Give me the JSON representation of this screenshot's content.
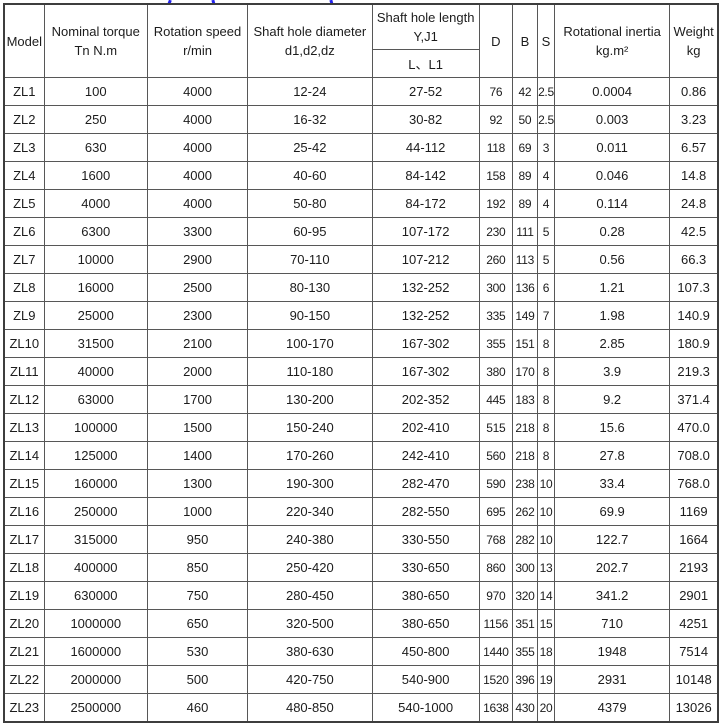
{
  "colors": {
    "table_border": "#575757",
    "outer_border": "#3d3d3d",
    "text": "#1c1c1c",
    "clipped_fragment_blue": "#2222ee",
    "background": "#ffffff"
  },
  "table": {
    "column_ids": [
      "model",
      "nominal_torque",
      "rotation_speed",
      "shaft_hole_diameter",
      "shaft_hole_length",
      "d",
      "b",
      "s",
      "rotational_inertia",
      "weight"
    ],
    "header": {
      "model": "Model",
      "nominal_torque": [
        "Nominal torque",
        "Tn N.m"
      ],
      "rotation_speed": [
        "Rotation speed",
        "r/min"
      ],
      "shaft_hole_diameter": [
        "Shaft hole diameter",
        "d1,d2,dz"
      ],
      "shaft_hole_length_top": [
        "Shaft hole length",
        "Y,J1"
      ],
      "shaft_hole_length_bottom": "L、L1",
      "d": "D",
      "b": "B",
      "s": "S",
      "rotational_inertia": [
        "Rotational inertia",
        "kg.m²"
      ],
      "weight": [
        "Weight",
        "kg"
      ]
    },
    "rows": [
      [
        "ZL1",
        "100",
        "4000",
        "12-24",
        "27-52",
        "76",
        "42",
        "2.5",
        "0.0004",
        "0.86"
      ],
      [
        "ZL2",
        "250",
        "4000",
        "16-32",
        "30-82",
        "92",
        "50",
        "2.5",
        "0.003",
        "3.23"
      ],
      [
        "ZL3",
        "630",
        "4000",
        "25-42",
        "44-112",
        "118",
        "69",
        "3",
        "0.011",
        "6.57"
      ],
      [
        "ZL4",
        "1600",
        "4000",
        "40-60",
        "84-142",
        "158",
        "89",
        "4",
        "0.046",
        "14.8"
      ],
      [
        "ZL5",
        "4000",
        "4000",
        "50-80",
        "84-172",
        "192",
        "89",
        "4",
        "0.114",
        "24.8"
      ],
      [
        "ZL6",
        "6300",
        "3300",
        "60-95",
        "107-172",
        "230",
        "111",
        "5",
        "0.28",
        "42.5"
      ],
      [
        "ZL7",
        "10000",
        "2900",
        "70-110",
        "107-212",
        "260",
        "113",
        "5",
        "0.56",
        "66.3"
      ],
      [
        "ZL8",
        "16000",
        "2500",
        "80-130",
        "132-252",
        "300",
        "136",
        "6",
        "1.21",
        "107.3"
      ],
      [
        "ZL9",
        "25000",
        "2300",
        "90-150",
        "132-252",
        "335",
        "149",
        "7",
        "1.98",
        "140.9"
      ],
      [
        "ZL10",
        "31500",
        "2100",
        "100-170",
        "167-302",
        "355",
        "151",
        "8",
        "2.85",
        "180.9"
      ],
      [
        "ZL11",
        "40000",
        "2000",
        "110-180",
        "167-302",
        "380",
        "170",
        "8",
        "3.9",
        "219.3"
      ],
      [
        "ZL12",
        "63000",
        "1700",
        "130-200",
        "202-352",
        "445",
        "183",
        "8",
        "9.2",
        "371.4"
      ],
      [
        "ZL13",
        "100000",
        "1500",
        "150-240",
        "202-410",
        "515",
        "218",
        "8",
        "15.6",
        "470.0"
      ],
      [
        "ZL14",
        "125000",
        "1400",
        "170-260",
        "242-410",
        "560",
        "218",
        "8",
        "27.8",
        "708.0"
      ],
      [
        "ZL15",
        "160000",
        "1300",
        "190-300",
        "282-470",
        "590",
        "238",
        "10",
        "33.4",
        "768.0"
      ],
      [
        "ZL16",
        "250000",
        "1000",
        "220-340",
        "282-550",
        "695",
        "262",
        "10",
        "69.9",
        "1169"
      ],
      [
        "ZL17",
        "315000",
        "950",
        "240-380",
        "330-550",
        "768",
        "282",
        "10",
        "122.7",
        "1664"
      ],
      [
        "ZL18",
        "400000",
        "850",
        "250-420",
        "330-650",
        "860",
        "300",
        "13",
        "202.7",
        "2193"
      ],
      [
        "ZL19",
        "630000",
        "750",
        "280-450",
        "380-650",
        "970",
        "320",
        "14",
        "341.2",
        "2901"
      ],
      [
        "ZL20",
        "1000000",
        "650",
        "320-500",
        "380-650",
        "1156",
        "351",
        "15",
        "710",
        "4251"
      ],
      [
        "ZL21",
        "1600000",
        "530",
        "380-630",
        "450-800",
        "1440",
        "355",
        "18",
        "1948",
        "7514"
      ],
      [
        "ZL22",
        "2000000",
        "500",
        "420-750",
        "540-900",
        "1520",
        "396",
        "19",
        "2931",
        "10148"
      ],
      [
        "ZL23",
        "2500000",
        "460",
        "480-850",
        "540-1000",
        "1638",
        "430",
        "20",
        "4379",
        "13026"
      ]
    ]
  }
}
